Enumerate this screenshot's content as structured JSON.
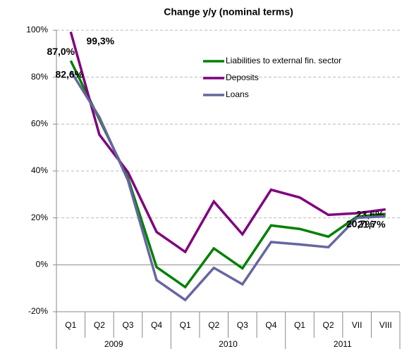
{
  "chart_data": {
    "type": "line",
    "title": "Change y/y (nominal terms)",
    "categories": [
      "Q1",
      "Q2",
      "Q3",
      "Q4",
      "Q1",
      "Q2",
      "Q3",
      "Q4",
      "Q1",
      "Q2",
      "VII",
      "VIII"
    ],
    "groups": [
      {
        "label": "2009",
        "start": 0,
        "end": 3
      },
      {
        "label": "2010",
        "start": 4,
        "end": 7
      },
      {
        "label": "2011",
        "start": 8,
        "end": 11
      }
    ],
    "series": [
      {
        "name": "Liabilities to external fin. sector",
        "color": "#008000",
        "values": [
          87.0,
          62,
          37,
          -1,
          -9.5,
          7,
          -1.5,
          16.8,
          15.3,
          12,
          20.5,
          21.7
        ],
        "value_labels": [
          "87,0%",
          null,
          null,
          null,
          null,
          null,
          null,
          null,
          null,
          null,
          null,
          "21,7%"
        ]
      },
      {
        "name": "Deposits",
        "color": "#800080",
        "values": [
          99.3,
          55.5,
          39.5,
          14,
          5.5,
          27,
          13,
          32,
          28.7,
          21.3,
          22,
          23.6
        ],
        "value_labels": [
          "99,3%",
          null,
          null,
          null,
          null,
          null,
          null,
          null,
          null,
          null,
          null,
          "23,6%"
        ]
      },
      {
        "name": "Loans",
        "color": "#6666a0",
        "values": [
          82.6,
          63,
          36,
          -6.5,
          -15,
          -1.3,
          -8.3,
          9.7,
          8.7,
          7.5,
          20,
          20.7
        ],
        "value_labels": [
          "82,6%",
          null,
          null,
          null,
          null,
          null,
          null,
          null,
          null,
          null,
          null,
          "20,7%"
        ]
      }
    ],
    "ylim": [
      -20,
      100
    ],
    "yticks": [
      {
        "value": -20,
        "label": "-20%"
      },
      {
        "value": 0,
        "label": "0%"
      },
      {
        "value": 20,
        "label": "20%"
      },
      {
        "value": 40,
        "label": "40%"
      },
      {
        "value": 60,
        "label": "60%"
      },
      {
        "value": 80,
        "label": "80%"
      },
      {
        "value": 100,
        "label": "100%"
      }
    ],
    "grid": true,
    "legend": "upper right"
  }
}
